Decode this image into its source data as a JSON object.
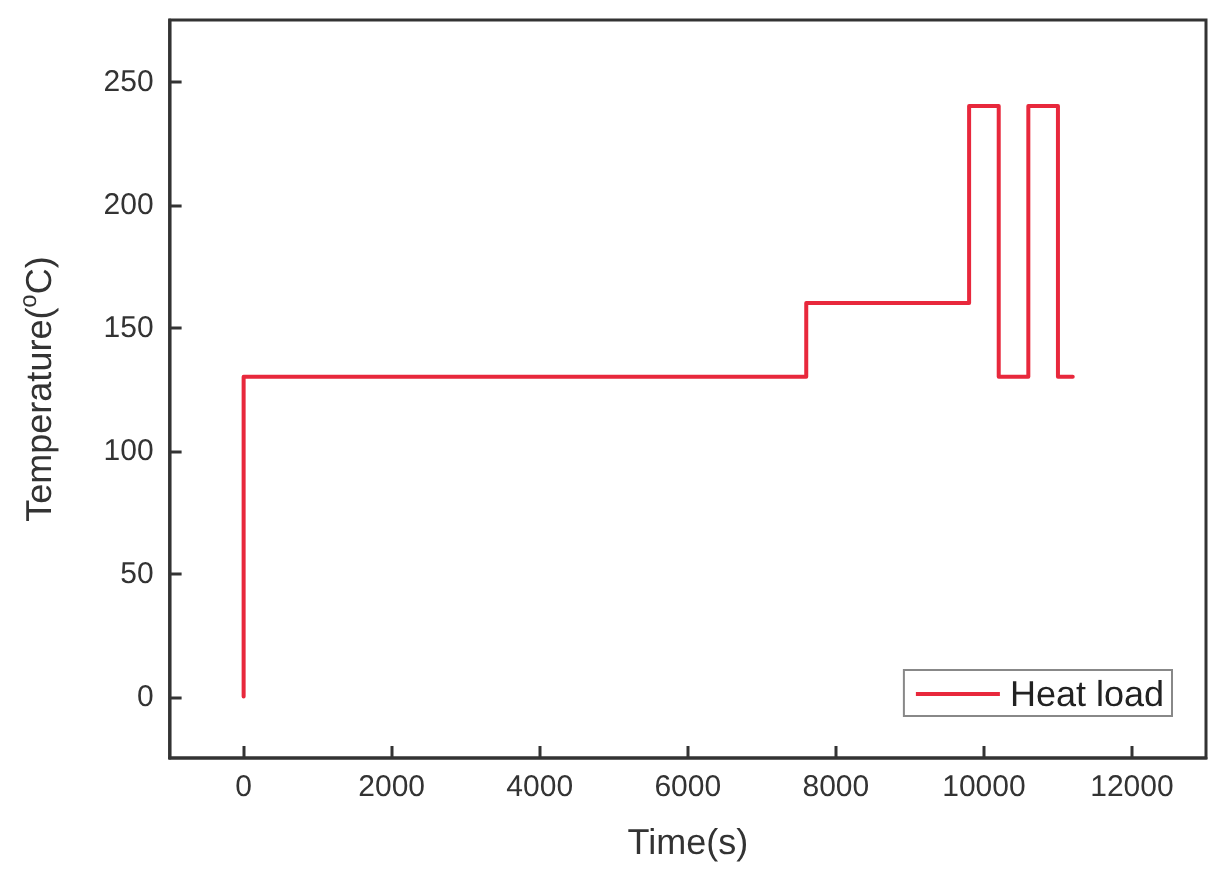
{
  "chart_data": {
    "type": "line",
    "xlabel": "Time(s)",
    "ylabel": "Temperature($^{o}$C)",
    "x": [
      0,
      0,
      7600,
      7600,
      9800,
      9800,
      10200,
      10200,
      10600,
      10600,
      11000,
      11000,
      11200
    ],
    "series": [
      {
        "name": "Heat load",
        "color": "#e8283c",
        "values": [
          0,
          130,
          130,
          160,
          160,
          240,
          240,
          130,
          130,
          240,
          240,
          130,
          130
        ]
      }
    ],
    "xlim": [
      -1000,
      13000
    ],
    "xticks": [
      0,
      2000,
      4000,
      6000,
      8000,
      10000,
      12000
    ],
    "ylim": [
      -25,
      275
    ],
    "yticks": [
      0,
      50,
      100,
      150,
      200,
      250
    ],
    "grid": false,
    "legend": "bottom right",
    "marker": "none",
    "line_style": "solid"
  }
}
